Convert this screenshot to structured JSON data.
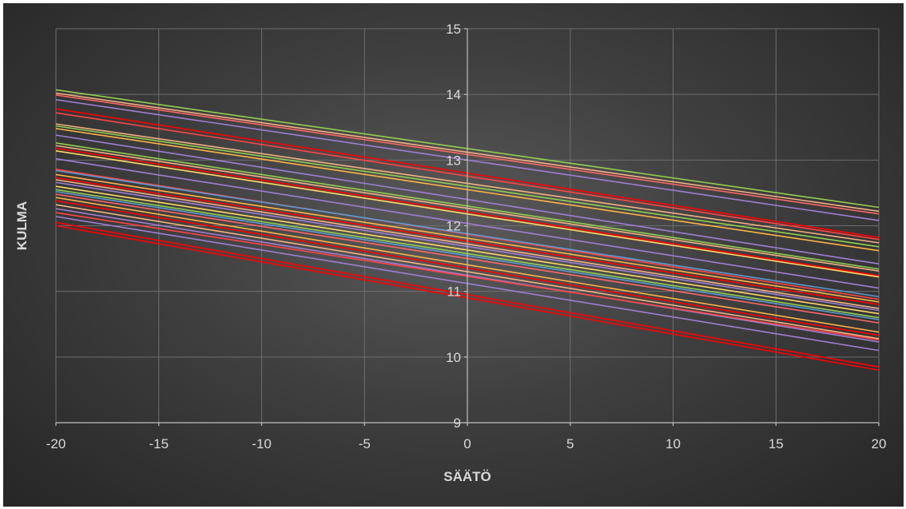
{
  "chart_data": {
    "type": "line",
    "xlabel": "SÄÄTÖ",
    "ylabel": "KULMA",
    "xlim": [
      -20,
      20
    ],
    "ylim": [
      9,
      15
    ],
    "x_ticks": [
      -20,
      -15,
      -10,
      -5,
      0,
      5,
      10,
      15,
      20
    ],
    "y_ticks": [
      9,
      10,
      11,
      12,
      13,
      14,
      15
    ],
    "grid": true,
    "legend": "none",
    "series": [
      {
        "color": "#92d050",
        "values": [
          [
            -20,
            14.07
          ],
          [
            20,
            12.28
          ]
        ]
      },
      {
        "color": "#f4b183",
        "values": [
          [
            -20,
            14.02
          ],
          [
            20,
            12.22
          ]
        ]
      },
      {
        "color": "#ff6666",
        "values": [
          [
            -20,
            13.99
          ],
          [
            20,
            12.18
          ]
        ]
      },
      {
        "color": "#9f7fd4",
        "values": [
          [
            -20,
            13.92
          ],
          [
            20,
            12.08
          ]
        ]
      },
      {
        "color": "#ff0000",
        "values": [
          [
            -20,
            13.78
          ],
          [
            20,
            11.82
          ]
        ]
      },
      {
        "color": "#ff4444",
        "values": [
          [
            -20,
            13.72
          ],
          [
            20,
            11.79
          ]
        ]
      },
      {
        "color": "#f4b183",
        "values": [
          [
            -20,
            13.55
          ],
          [
            20,
            11.74
          ]
        ]
      },
      {
        "color": "#92d050",
        "values": [
          [
            -20,
            13.52
          ],
          [
            20,
            11.68
          ]
        ]
      },
      {
        "color": "#ffb347",
        "values": [
          [
            -20,
            13.48
          ],
          [
            20,
            11.62
          ]
        ]
      },
      {
        "color": "#9f7fd4",
        "values": [
          [
            -20,
            13.38
          ],
          [
            20,
            11.42
          ]
        ]
      },
      {
        "color": "#92d050",
        "values": [
          [
            -20,
            13.26
          ],
          [
            20,
            11.34
          ]
        ]
      },
      {
        "color": "#f4b183",
        "values": [
          [
            -20,
            13.22
          ],
          [
            20,
            11.31
          ]
        ]
      },
      {
        "color": "#ff0000",
        "values": [
          [
            -20,
            13.18
          ],
          [
            20,
            11.24
          ]
        ]
      },
      {
        "color": "#ffd966",
        "values": [
          [
            -20,
            13.14
          ],
          [
            20,
            11.22
          ]
        ]
      },
      {
        "color": "#9f7fd4",
        "values": [
          [
            -20,
            13.02
          ],
          [
            20,
            11.05
          ]
        ]
      },
      {
        "color": "#ff4444",
        "values": [
          [
            -20,
            12.86
          ],
          [
            20,
            10.88
          ]
        ]
      },
      {
        "color": "#5b9bd5",
        "values": [
          [
            -20,
            12.84
          ],
          [
            20,
            10.92
          ]
        ]
      },
      {
        "color": "#ffb347",
        "values": [
          [
            -20,
            12.78
          ],
          [
            20,
            10.84
          ]
        ]
      },
      {
        "color": "#ff0000",
        "values": [
          [
            -20,
            12.73
          ],
          [
            20,
            10.8
          ]
        ]
      },
      {
        "color": "#f4b183",
        "values": [
          [
            -20,
            12.7
          ],
          [
            20,
            10.74
          ]
        ]
      },
      {
        "color": "#9f7fd4",
        "values": [
          [
            -20,
            12.66
          ],
          [
            20,
            10.71
          ]
        ]
      },
      {
        "color": "#ffd966",
        "values": [
          [
            -20,
            12.6
          ],
          [
            20,
            10.66
          ]
        ]
      },
      {
        "color": "#92d050",
        "values": [
          [
            -20,
            12.55
          ],
          [
            20,
            10.6
          ]
        ]
      },
      {
        "color": "#5b9bd5",
        "values": [
          [
            -20,
            12.52
          ],
          [
            20,
            10.57
          ]
        ]
      },
      {
        "color": "#ff6666",
        "values": [
          [
            -20,
            12.48
          ],
          [
            20,
            10.52
          ]
        ]
      },
      {
        "color": "#ffb347",
        "values": [
          [
            -20,
            12.43
          ],
          [
            20,
            10.38
          ]
        ]
      },
      {
        "color": "#ff0000",
        "values": [
          [
            -20,
            12.38
          ],
          [
            20,
            10.33
          ]
        ]
      },
      {
        "color": "#f4b183",
        "values": [
          [
            -20,
            12.32
          ],
          [
            20,
            10.28
          ]
        ]
      },
      {
        "color": "#9f7fd4",
        "values": [
          [
            -20,
            12.26
          ],
          [
            20,
            10.23
          ]
        ]
      },
      {
        "color": "#ff4444",
        "values": [
          [
            -20,
            12.2
          ],
          [
            20,
            10.26
          ]
        ]
      },
      {
        "color": "#9f7fd4",
        "values": [
          [
            -20,
            12.14
          ],
          [
            20,
            10.1
          ]
        ]
      },
      {
        "color": "#ff0000",
        "values": [
          [
            -20,
            12.05
          ],
          [
            20,
            9.85
          ]
        ]
      },
      {
        "color": "#ff0000",
        "values": [
          [
            -20,
            12.0
          ],
          [
            20,
            9.8
          ]
        ]
      }
    ]
  }
}
